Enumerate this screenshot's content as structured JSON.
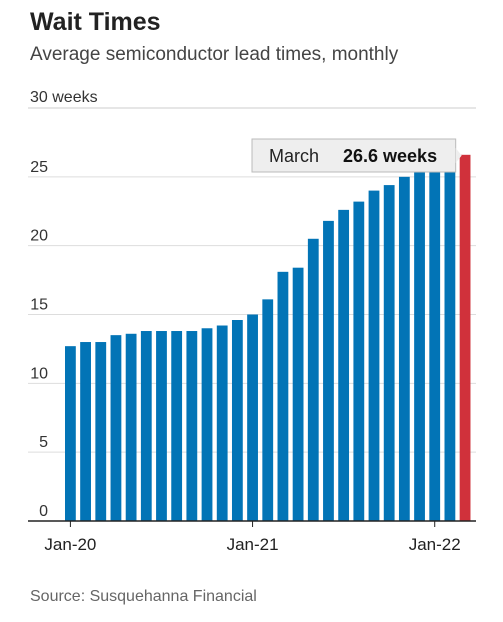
{
  "chart_data": {
    "type": "bar",
    "title": "Wait Times",
    "subtitle": "Average semiconductor lead times, monthly",
    "source": "Source: Susquehanna Financial",
    "y_unit_label": "30 weeks",
    "ylim": [
      0,
      30
    ],
    "y_ticks": [
      {
        "value": 0,
        "label": "0"
      },
      {
        "value": 5,
        "label": "5"
      },
      {
        "value": 10,
        "label": "10"
      },
      {
        "value": 15,
        "label": "15"
      },
      {
        "value": 20,
        "label": "20"
      },
      {
        "value": 25,
        "label": "25"
      }
    ],
    "grid": true,
    "categories": [
      "Jan-20",
      "Feb-20",
      "Mar-20",
      "Apr-20",
      "May-20",
      "Jun-20",
      "Jul-20",
      "Aug-20",
      "Sep-20",
      "Oct-20",
      "Nov-20",
      "Dec-20",
      "Jan-21",
      "Feb-21",
      "Mar-21",
      "Apr-21",
      "May-21",
      "Jun-21",
      "Jul-21",
      "Aug-21",
      "Sep-21",
      "Oct-21",
      "Nov-21",
      "Dec-21",
      "Jan-22",
      "Feb-22",
      "Mar-22"
    ],
    "values": [
      12.7,
      13.0,
      13.0,
      13.5,
      13.6,
      13.8,
      13.8,
      13.8,
      13.8,
      14.0,
      14.2,
      14.6,
      15.0,
      16.1,
      18.1,
      18.4,
      20.5,
      21.8,
      22.6,
      23.2,
      24.0,
      24.4,
      25.0,
      25.6,
      25.6,
      25.6,
      26.6
    ],
    "x_tick_labels": [
      "Jan-20",
      "Jan-21",
      "Jan-22"
    ],
    "colors": {
      "bar": "#0274b6",
      "highlight": "#d0313b"
    },
    "highlight_index": 26,
    "annotation": {
      "label": "March",
      "value_text": "26.6 weeks"
    }
  }
}
